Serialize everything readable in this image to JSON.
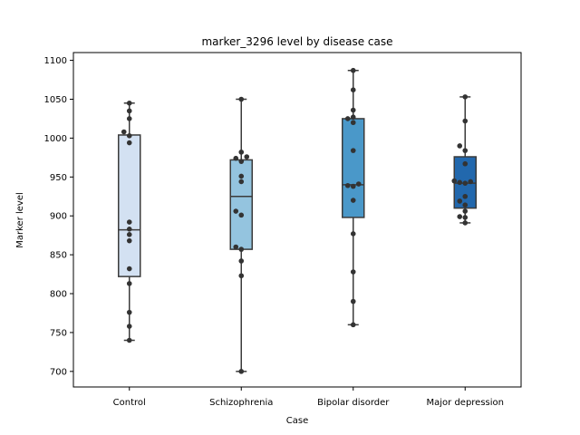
{
  "chart_data": {
    "type": "boxplot",
    "title": "marker_3296 level by disease case",
    "xlabel": "Case",
    "ylabel": "Marker level",
    "ylim": [
      680,
      1110
    ],
    "yticks": [
      700,
      750,
      800,
      850,
      900,
      950,
      1000,
      1050,
      1100
    ],
    "grid": false,
    "categories": [
      "Control",
      "Schizophrenia",
      "Bipolar disorder",
      "Major depression"
    ],
    "box_colors": [
      "#d3e1f2",
      "#94c4df",
      "#4a98c9",
      "#2268ad"
    ],
    "boxes": [
      {
        "category": "Control",
        "min": 740,
        "q1": 822,
        "median": 882,
        "q3": 1004,
        "max": 1045
      },
      {
        "category": "Schizophrenia",
        "min": 700,
        "q1": 857,
        "median": 925,
        "q3": 972,
        "max": 1050
      },
      {
        "category": "Bipolar disorder",
        "min": 760,
        "q1": 898,
        "median": 940,
        "q3": 1025,
        "max": 1087
      },
      {
        "category": "Major depression",
        "min": 891,
        "q1": 910,
        "median": 942,
        "q3": 976,
        "max": 1053
      }
    ],
    "points": [
      {
        "category": "Control",
        "values": [
          740,
          758,
          776,
          813,
          832,
          868,
          876,
          883,
          892,
          994,
          1003,
          1008,
          1025,
          1035,
          1045
        ]
      },
      {
        "category": "Schizophrenia",
        "values": [
          700,
          823,
          842,
          857,
          860,
          901,
          906,
          944,
          951,
          970,
          974,
          976,
          982,
          1050
        ]
      },
      {
        "category": "Bipolar disorder",
        "values": [
          760,
          790,
          828,
          877,
          920,
          938,
          939,
          941,
          984,
          1020,
          1025,
          1027,
          1036,
          1062,
          1087
        ]
      },
      {
        "category": "Major depression",
        "values": [
          891,
          898,
          899,
          906,
          914,
          919,
          925,
          942,
          943,
          944,
          945,
          967,
          984,
          990,
          1022,
          1053
        ]
      }
    ]
  }
}
